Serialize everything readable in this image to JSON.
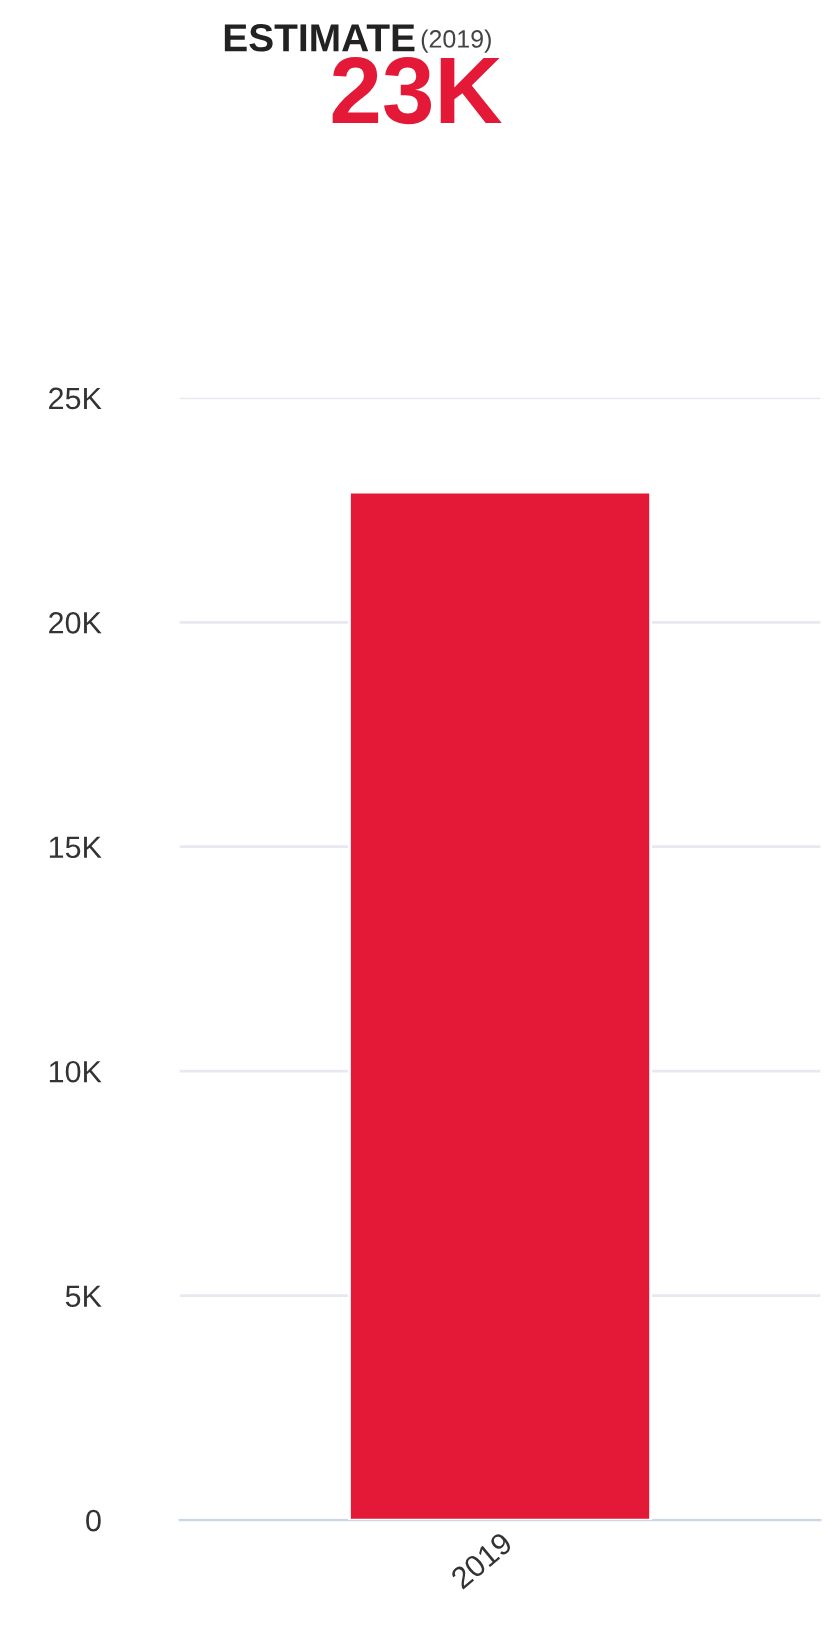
{
  "chart_data": {
    "type": "bar",
    "title": "ESTIMATE",
    "subtitle": "(2019)",
    "annotations": [
      "23K"
    ],
    "categories": [
      "2019"
    ],
    "series": [
      {
        "color": "#e31937",
        "values": [
          22900
        ]
      }
    ],
    "ylim": [
      0,
      25000
    ],
    "yticks": [
      {
        "value": 0,
        "label": "0"
      },
      {
        "value": 5000,
        "label": "5K"
      },
      {
        "value": 10000,
        "label": "10K"
      },
      {
        "value": 15000,
        "label": "15K"
      },
      {
        "value": 20000,
        "label": "20K"
      },
      {
        "value": 25000,
        "label": "25K"
      }
    ],
    "grid": "y",
    "legend": false
  }
}
